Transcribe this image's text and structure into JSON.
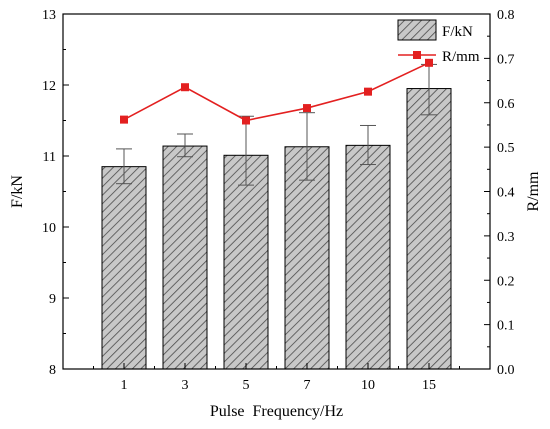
{
  "chart_data": {
    "type": "bar",
    "categories": [
      "1",
      "3",
      "5",
      "7",
      "10",
      "15"
    ],
    "xlabel": "Pulse  Frequency/Hz",
    "ylabel_left": "F/kN",
    "ylabel_right": "R/mm",
    "ylim_left": [
      8,
      13
    ],
    "yticks_left": [
      "8",
      "9",
      "10",
      "11",
      "12",
      "13"
    ],
    "ylim_right": [
      0.0,
      0.8
    ],
    "yticks_right": [
      "0.0",
      "0.1",
      "0.2",
      "0.3",
      "0.4",
      "0.5",
      "0.6",
      "0.7",
      "0.8"
    ],
    "grid": false,
    "legend_position": "top-right",
    "series": [
      {
        "name": "F/kN",
        "kind": "bar",
        "axis": "left",
        "values": [
          10.85,
          11.14,
          11.01,
          11.13,
          11.15,
          11.95
        ],
        "error_low": [
          10.61,
          10.99,
          10.59,
          10.66,
          10.88,
          11.58
        ],
        "error_high": [
          11.1,
          11.31,
          11.56,
          11.61,
          11.43,
          12.29
        ]
      },
      {
        "name": "R/mm",
        "kind": "line",
        "axis": "right",
        "values": [
          0.562,
          0.635,
          0.56,
          0.588,
          0.625,
          0.69
        ]
      }
    ],
    "colors": {
      "bar_fill": "#c8c8c8",
      "bar_hatch": "#4a4a4a",
      "line": "#e32020",
      "axis": "#000000"
    }
  }
}
